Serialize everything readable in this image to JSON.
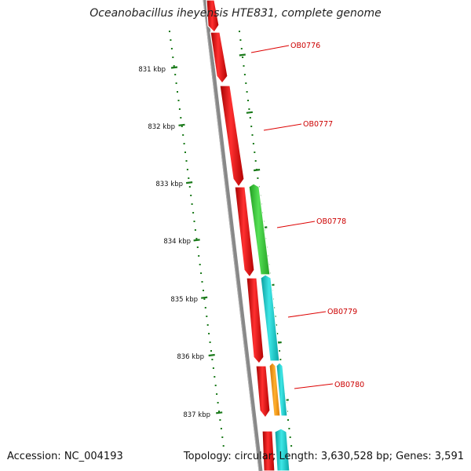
{
  "title": "Oceanobacillus iheyensis HTE831, complete genome",
  "accession_text": "Accession: NC_004193",
  "topology_text": "Topology: circular; Length: 3,630,528 bp; Genes: 3,591",
  "scale_ticks": [
    "831 kbp",
    "832 kbp",
    "833 kbp",
    "834 kbp",
    "835 kbp",
    "836 kbp",
    "837 kbp"
  ],
  "gene_labels": [
    "OB0776",
    "OB0777",
    "OB0778",
    "OB0779",
    "OB0780"
  ],
  "colors": {
    "inner_scale": "#1a7a1a",
    "outer_scale": "#1a7a1a",
    "backbone": "#7a7a7a",
    "forward_genes": "#ee1111",
    "reverse_green": "#33cc33",
    "reverse_cyan": "#11cccc",
    "reverse_orange": "#ff9900",
    "label_red": "#cc0000",
    "label_line": "#dd0000"
  }
}
